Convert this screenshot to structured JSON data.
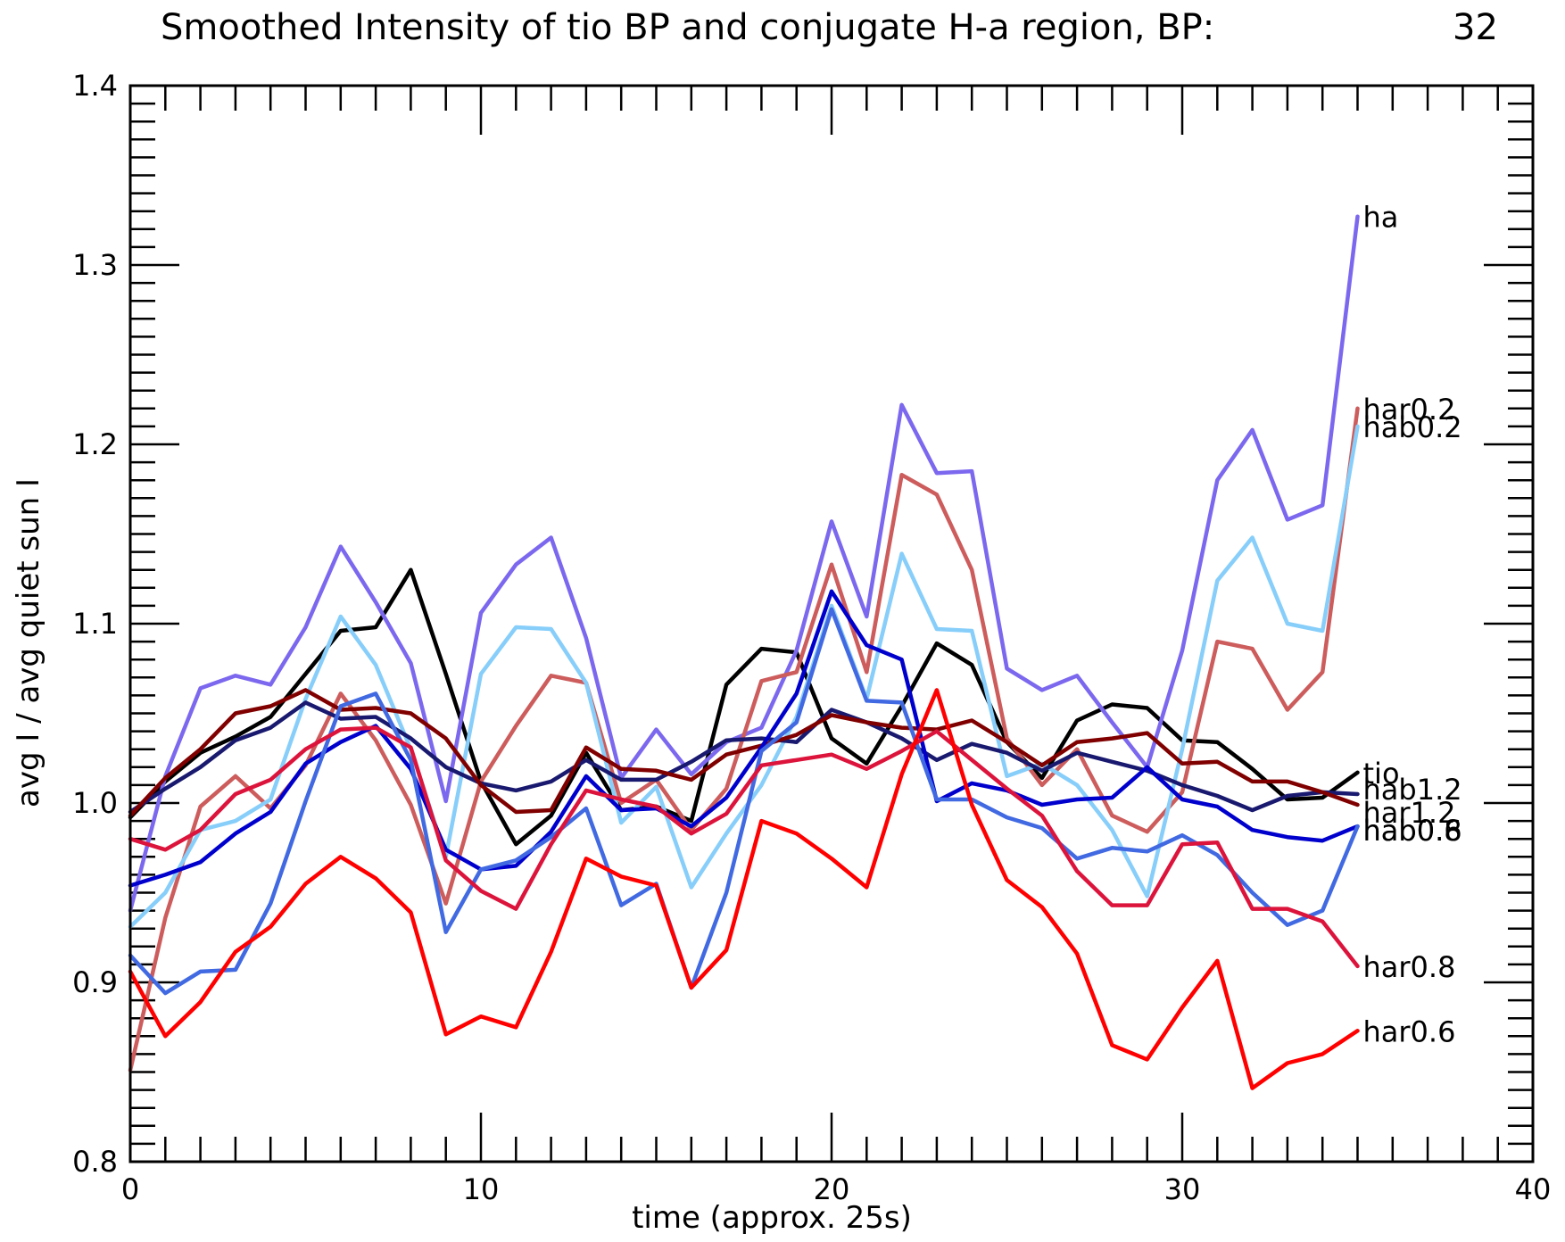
{
  "chart_data": {
    "type": "line",
    "title": "Smoothed Intensity of tio BP and conjugate H-a region, BP:",
    "title_value": "32",
    "xlabel": "time (approx. 25s)",
    "ylabel": "avg I / avg quiet sun I",
    "xlim": [
      0,
      40
    ],
    "ylim": [
      0.8,
      1.4
    ],
    "xticks": [
      0,
      10,
      20,
      30,
      40
    ],
    "yticks": [
      0.8,
      0.9,
      1.0,
      1.1,
      1.2,
      1.3,
      1.4
    ],
    "x_minor_step": 1,
    "y_minor_step": 0.01,
    "grid": false,
    "x": [
      0,
      1,
      2,
      3,
      4,
      5,
      6,
      7,
      8,
      9,
      10,
      11,
      12,
      13,
      14,
      15,
      16,
      17,
      18,
      19,
      20,
      21,
      22,
      23,
      24,
      25,
      26,
      27,
      28,
      29,
      30,
      31,
      32,
      33,
      34,
      35
    ],
    "series": [
      {
        "name": "tio",
        "color": "#000000",
        "values": [
          0.992,
          1.012,
          1.028,
          1.037,
          1.048,
          1.072,
          1.096,
          1.098,
          1.13,
          1.072,
          1.012,
          0.977,
          0.993,
          1.028,
          0.996,
          0.998,
          0.99,
          1.066,
          1.086,
          1.084,
          1.036,
          1.022,
          1.054,
          1.089,
          1.077,
          1.034,
          1.014,
          1.046,
          1.055,
          1.053,
          1.035,
          1.034,
          1.019,
          1.002,
          1.003,
          1.017
        ]
      },
      {
        "name": "ha",
        "color": "#7b68ee",
        "values": [
          0.94,
          1.015,
          1.064,
          1.071,
          1.066,
          1.098,
          1.143,
          1.112,
          1.078,
          1.001,
          1.106,
          1.133,
          1.148,
          1.092,
          1.014,
          1.041,
          1.016,
          1.034,
          1.042,
          1.085,
          1.157,
          1.104,
          1.222,
          1.184,
          1.185,
          1.075,
          1.063,
          1.071,
          1.045,
          1.02,
          1.085,
          1.18,
          1.208,
          1.158,
          1.166,
          1.327
        ]
      },
      {
        "name": "har0.2",
        "color": "#cd5c5c",
        "values": [
          0.851,
          0.936,
          0.998,
          1.015,
          0.997,
          1.021,
          1.061,
          1.035,
          0.999,
          0.944,
          1.012,
          1.043,
          1.071,
          1.067,
          1.0,
          1.013,
          0.985,
          1.008,
          1.068,
          1.073,
          1.133,
          1.073,
          1.183,
          1.172,
          1.13,
          1.036,
          1.01,
          1.03,
          0.993,
          0.984,
          1.006,
          1.09,
          1.086,
          1.052,
          1.073,
          1.22
        ]
      },
      {
        "name": "hab0.2",
        "color": "#87cefa",
        "values": [
          0.931,
          0.95,
          0.985,
          0.99,
          1.002,
          1.058,
          1.104,
          1.077,
          1.03,
          0.97,
          1.072,
          1.098,
          1.097,
          1.067,
          0.989,
          1.009,
          0.953,
          0.983,
          1.01,
          1.048,
          1.11,
          1.058,
          1.139,
          1.097,
          1.096,
          1.015,
          1.022,
          1.01,
          0.985,
          0.948,
          1.03,
          1.124,
          1.148,
          1.1,
          1.096,
          1.21
        ]
      },
      {
        "name": "hab1.2",
        "color": "#191970",
        "values": [
          0.995,
          1.008,
          1.02,
          1.035,
          1.042,
          1.056,
          1.047,
          1.048,
          1.036,
          1.02,
          1.011,
          1.007,
          1.012,
          1.024,
          1.013,
          1.013,
          1.023,
          1.035,
          1.036,
          1.034,
          1.052,
          1.045,
          1.036,
          1.024,
          1.033,
          1.028,
          1.018,
          1.028,
          1.023,
          1.018,
          1.01,
          1.004,
          0.996,
          1.004,
          1.006,
          1.005
        ]
      },
      {
        "name": "har1.2",
        "color": "#800000",
        "values": [
          0.993,
          1.014,
          1.03,
          1.05,
          1.054,
          1.063,
          1.052,
          1.053,
          1.05,
          1.036,
          1.01,
          0.995,
          0.996,
          1.031,
          1.019,
          1.018,
          1.013,
          1.027,
          1.032,
          1.038,
          1.049,
          1.045,
          1.042,
          1.041,
          1.046,
          1.034,
          1.021,
          1.034,
          1.036,
          1.039,
          1.022,
          1.023,
          1.012,
          1.012,
          1.006,
          0.999
        ]
      },
      {
        "name": "hab0.8",
        "color": "#0000cd",
        "values": [
          0.954,
          0.96,
          0.967,
          0.983,
          0.995,
          1.022,
          1.034,
          1.043,
          1.019,
          0.974,
          0.963,
          0.965,
          0.984,
          1.015,
          0.996,
          0.997,
          0.987,
          1.003,
          1.031,
          1.061,
          1.118,
          1.088,
          1.08,
          1.001,
          1.011,
          1.007,
          0.999,
          1.002,
          1.003,
          1.02,
          1.002,
          0.998,
          0.985,
          0.981,
          0.979,
          0.987
        ]
      },
      {
        "name": "hab0.6",
        "color": "#4169e1",
        "values": [
          0.915,
          0.894,
          0.906,
          0.907,
          0.944,
          1.001,
          1.054,
          1.061,
          1.024,
          0.928,
          0.963,
          0.968,
          0.981,
          0.997,
          0.943,
          0.955,
          0.897,
          0.95,
          1.029,
          1.045,
          1.108,
          1.057,
          1.056,
          1.002,
          1.002,
          0.992,
          0.986,
          0.969,
          0.975,
          0.973,
          0.982,
          0.971,
          0.95,
          0.932,
          0.94,
          0.987
        ]
      },
      {
        "name": "har0.8",
        "color": "#dc143c",
        "values": [
          0.98,
          0.974,
          0.985,
          1.005,
          1.013,
          1.03,
          1.041,
          1.042,
          1.031,
          0.968,
          0.951,
          0.941,
          0.977,
          1.007,
          1.002,
          0.998,
          0.983,
          0.994,
          1.021,
          1.024,
          1.027,
          1.019,
          1.029,
          1.04,
          1.024,
          1.008,
          0.993,
          0.962,
          0.943,
          0.943,
          0.977,
          0.978,
          0.941,
          0.941,
          0.934,
          0.909
        ]
      },
      {
        "name": "har0.6",
        "color": "#ff0000",
        "values": [
          0.906,
          0.87,
          0.889,
          0.917,
          0.931,
          0.955,
          0.97,
          0.958,
          0.939,
          0.871,
          0.881,
          0.875,
          0.917,
          0.969,
          0.959,
          0.954,
          0.897,
          0.918,
          0.99,
          0.983,
          0.969,
          0.953,
          1.016,
          1.063,
          0.999,
          0.957,
          0.942,
          0.916,
          0.865,
          0.857,
          0.886,
          0.912,
          0.841,
          0.855,
          0.86,
          0.873
        ]
      }
    ],
    "end_labels": [
      {
        "text": "ha"
      },
      {
        "text": "har0.2"
      },
      {
        "text": "hab0.2"
      },
      {
        "text": "tio"
      },
      {
        "text": "hab1.2"
      },
      {
        "text": "har1.2"
      },
      {
        "text": "hab0.8"
      },
      {
        "text": "hab0.6"
      },
      {
        "text": "har0.8"
      },
      {
        "text": "har0.6"
      }
    ]
  }
}
